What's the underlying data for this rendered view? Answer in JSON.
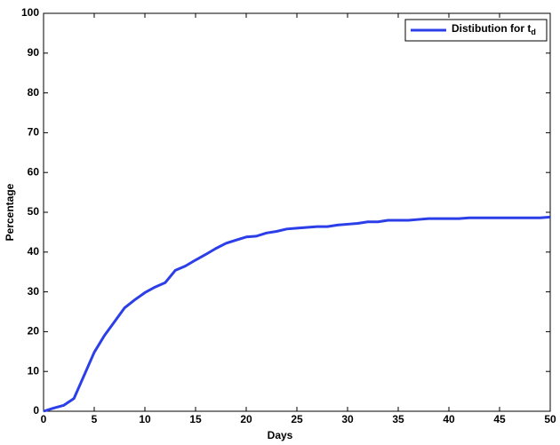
{
  "chart_data": {
    "type": "line",
    "xlabel": "Days",
    "ylabel": "Percentage",
    "x": [
      0,
      1,
      2,
      3,
      4,
      5,
      6,
      7,
      8,
      9,
      10,
      11,
      12,
      13,
      14,
      15,
      16,
      17,
      18,
      19,
      20,
      21,
      22,
      23,
      24,
      25,
      26,
      27,
      28,
      29,
      30,
      31,
      32,
      33,
      34,
      35,
      36,
      37,
      38,
      39,
      40,
      41,
      42,
      43,
      44,
      45,
      46,
      47,
      48,
      49,
      50
    ],
    "series": [
      {
        "name": "Distibution for t",
        "name_subscript": "d",
        "color": "#2b3ee8",
        "values": [
          0,
          0.8,
          1.5,
          3.2,
          9,
          14.8,
          19,
          22.5,
          26,
          28,
          29.8,
          31.2,
          32.3,
          35.4,
          36.5,
          38,
          39.4,
          40.9,
          42.2,
          43,
          43.8,
          44,
          44.8,
          45.2,
          45.8,
          46,
          46.2,
          46.4,
          46.4,
          46.8,
          47,
          47.2,
          47.6,
          47.6,
          48,
          48,
          48,
          48.2,
          48.4,
          48.4,
          48.4,
          48.4,
          48.6,
          48.6,
          48.6,
          48.6,
          48.6,
          48.6,
          48.6,
          48.6,
          48.8
        ]
      }
    ],
    "xlim": [
      0,
      50
    ],
    "xticks": [
      0,
      5,
      10,
      15,
      20,
      25,
      30,
      35,
      40,
      45,
      50
    ],
    "ylim": [
      0,
      100
    ],
    "yticks": [
      0,
      10,
      20,
      30,
      40,
      50,
      60,
      70,
      80,
      90,
      100
    ],
    "legend": "upper right"
  }
}
